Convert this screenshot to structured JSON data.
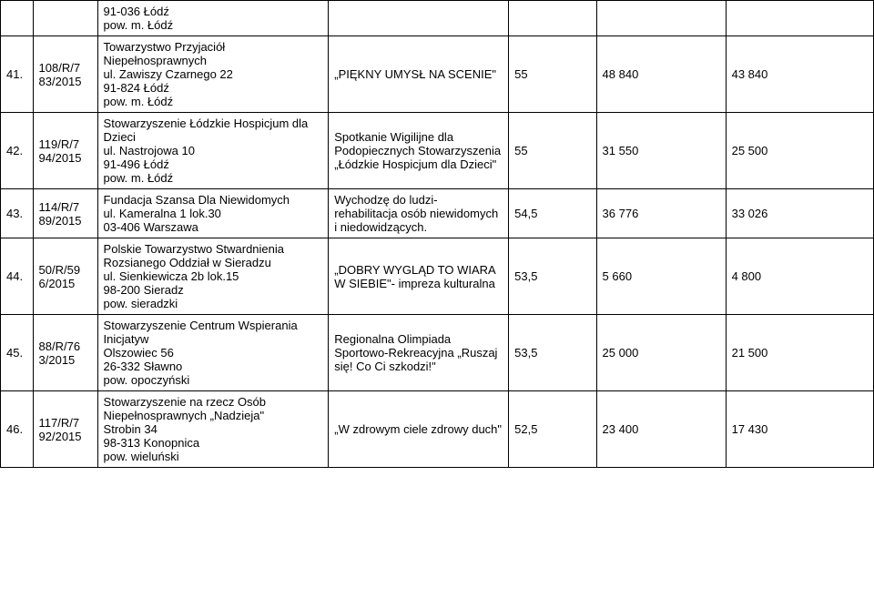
{
  "rows": {
    "r0": {
      "lp": "",
      "id": "",
      "org": "91-036 Łódź\npow. m. Łódź",
      "task": "",
      "n1": "",
      "n2": "",
      "n3": ""
    },
    "r41": {
      "lp": "41.",
      "id": "108/R/7\n83/2015",
      "org": "Towarzystwo Przyjaciół Niepełnosprawnych\nul. Zawiszy Czarnego 22\n91-824 Łódź\npow. m. Łódź",
      "task": "„PIĘKNY UMYSŁ NA SCENIE\"",
      "n1": "55",
      "n2": "48 840",
      "n3": "43 840"
    },
    "r42": {
      "lp": "42.",
      "id": "119/R/7\n94/2015",
      "org": " Stowarzyszenie Łódzkie Hospicjum dla Dzieci\nul. Nastrojowa 10\n91-496 Łódź\npow. m. Łódź",
      "task": "Spotkanie Wigilijne dla Podopiecznych Stowarzyszenia „Łódzkie Hospicjum dla Dzieci\"",
      "n1": "55",
      "n2": "31 550",
      "n3": "25 500"
    },
    "r43": {
      "lp": "43.",
      "id": "114/R/7\n89/2015",
      "org": "Fundacja Szansa Dla Niewidomych\nul. Kameralna 1 lok.30\n03-406 Warszawa",
      "task": "Wychodzę do ludzi- rehabilitacja osób niewidomych i niedowidzących.",
      "n1": "54,5",
      "n2": "36 776",
      "n3": "33 026"
    },
    "r44": {
      "lp": "44.",
      "id": "50/R/59\n6/2015",
      "org": "Polskie Towarzystwo Stwardnienia Rozsianego Oddział w Sieradzu\nul. Sienkiewicza 2b lok.15\n98-200 Sieradz\npow. sieradzki",
      "task": "„DOBRY WYGLĄD TO WIARA W SIEBIE\"- impreza kulturalna",
      "n1": "53,5",
      "n2": "5 660",
      "n3": "4 800"
    },
    "r45": {
      "lp": "45.",
      "id": "88/R/76\n3/2015",
      "org": "Stowarzyszenie Centrum Wspierania Inicjatyw\nOlszowiec 56\n26-332 Sławno\npow. opoczyński",
      "task": "Regionalna Olimpiada Sportowo-Rekreacyjna „Ruszaj się! Co Ci szkodzi!\"",
      "n1": "53,5",
      "n2": "25 000",
      "n3": "21 500"
    },
    "r46": {
      "lp": "46.",
      "id": "117/R/7\n92/2015",
      "org": "Stowarzyszenie na rzecz Osób Niepełnosprawnych „Nadzieja\"\nStrobin 34\n98-313 Konopnica\npow. wieluński",
      "task": "„W zdrowym ciele zdrowy duch\"",
      "n1": "52,5",
      "n2": "23 400",
      "n3": "17 430"
    }
  }
}
